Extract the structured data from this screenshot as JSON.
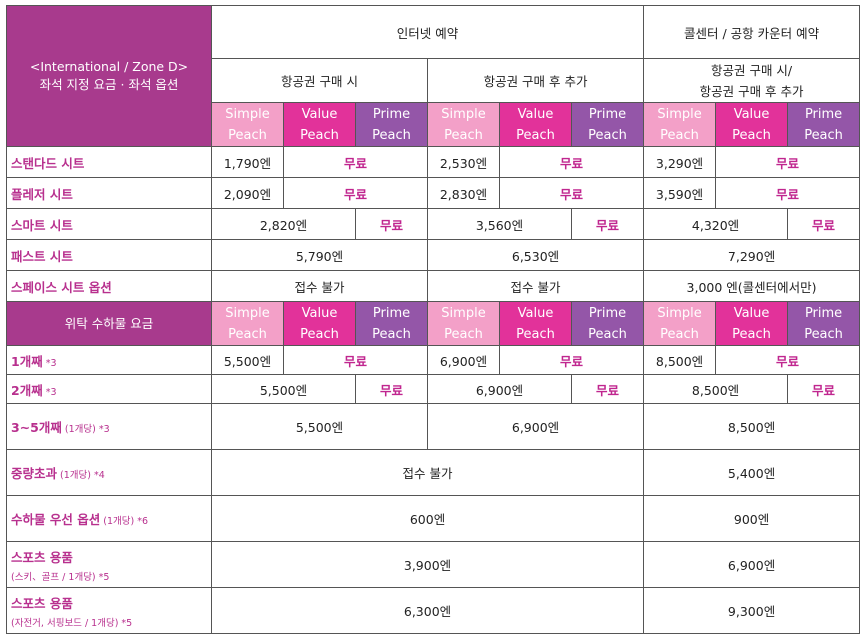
{
  "header": {
    "corner_line1": "<International / Zone D>",
    "corner_line2": "좌석 지정 요금 · 좌석 옵션",
    "internet": "인터넷 예약",
    "callcenter": "콜센터 / 공항 카운터 예약",
    "at_purchase": "항공권 구매 시",
    "after_purchase": "항공권 구매 후 추가",
    "cc_line1": "항공권 구매 시/",
    "cc_line2": "항공권 구매 후 추가"
  },
  "fares": {
    "simple": [
      "Simple",
      "Peach"
    ],
    "value": [
      "Value",
      "Peach"
    ],
    "prime": [
      "Prime",
      "Peach"
    ]
  },
  "free_label": "무료",
  "seats": [
    {
      "label": "스탠다드 시트",
      "v": [
        "1,790엔",
        "2,530엔",
        "3,290엔"
      ]
    },
    {
      "label": "플레저 시트",
      "v": [
        "2,090엔",
        "2,830엔",
        "3,590엔"
      ]
    },
    {
      "label": "스마트 시트",
      "v": [
        "2,820엔",
        "3,560엔",
        "4,320엔"
      ]
    },
    {
      "label": "패스트 시트",
      "v": [
        "5,790엔",
        "6,530엔",
        "7,290엔"
      ]
    },
    {
      "label": "스페이스 시트 옵션",
      "v": [
        "접수 불가",
        "접수 불가",
        "3,000 엔(콜센터에서만)"
      ]
    }
  ],
  "baggage_header": "위탁 수하물 요금",
  "baggage": [
    {
      "label": "1개째",
      "note": " *3",
      "v": [
        "5,500엔",
        "6,900엔",
        "8,500엔"
      ]
    },
    {
      "label": "2개째",
      "note": " *3",
      "v": [
        "5,500엔",
        "6,900엔",
        "8,500엔"
      ]
    },
    {
      "label": "3∼5개째",
      "note": " (1개당)  *3",
      "v": [
        "5,500엔",
        "6,900엔",
        "8,500엔"
      ]
    },
    {
      "label": "중량초과",
      "note": " (1개당) *4",
      "v": [
        "접수 불가",
        "5,400엔"
      ]
    },
    {
      "label": "수하물 우선 옵션",
      "note": " (1개당)  *6",
      "v": [
        "600엔",
        "900엔"
      ]
    },
    {
      "label": "스포츠 용품",
      "note": "(스키、골프 / 1개당) *5",
      "v": [
        "3,900엔",
        "6,900엔"
      ]
    },
    {
      "label": "스포츠 용품",
      "note": "(자전거, 서핑보드 / 1개당) *5",
      "v": [
        "6,300엔",
        "9,300엔"
      ]
    }
  ]
}
